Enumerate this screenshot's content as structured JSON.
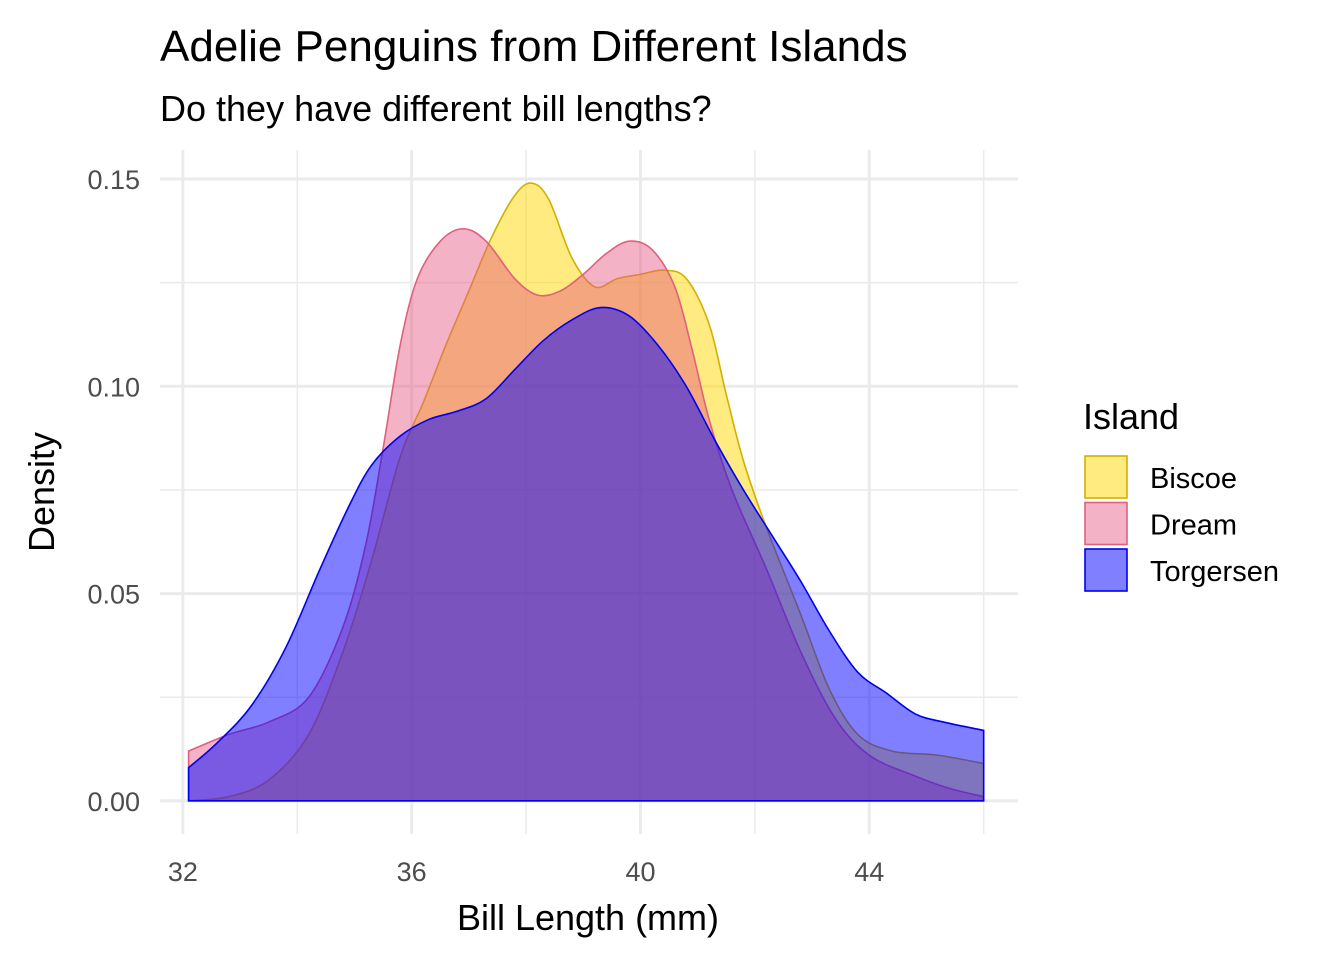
{
  "chart_data": {
    "type": "area",
    "title": "Adelie Penguins from Different Islands",
    "subtitle": "Do they have different bill lengths?",
    "xlabel": "Bill Length (mm)",
    "ylabel": "Density",
    "xlim": [
      31.6,
      46.6
    ],
    "ylim": [
      -0.008,
      0.157
    ],
    "x_ticks": [
      32,
      36,
      40,
      44
    ],
    "x_tick_labels": [
      "32",
      "36",
      "40",
      "44"
    ],
    "y_ticks": [
      0.0,
      0.05,
      0.1,
      0.15
    ],
    "y_tick_labels": [
      "0.00",
      "0.05",
      "0.10",
      "0.15"
    ],
    "grid": true,
    "legend": {
      "title": "Island",
      "position": "right"
    },
    "series": [
      {
        "name": "Biscoe",
        "fill": "#FFD700",
        "stroke": "#D4AF00",
        "opacity": 0.5,
        "points": [
          [
            32.1,
            0.0
          ],
          [
            32.8,
            0.001
          ],
          [
            33.5,
            0.005
          ],
          [
            34.2,
            0.016
          ],
          [
            34.8,
            0.036
          ],
          [
            35.3,
            0.058
          ],
          [
            35.8,
            0.083
          ],
          [
            36.2,
            0.096
          ],
          [
            36.6,
            0.11
          ],
          [
            37.0,
            0.123
          ],
          [
            37.4,
            0.136
          ],
          [
            37.8,
            0.146
          ],
          [
            38.1,
            0.149
          ],
          [
            38.4,
            0.145
          ],
          [
            38.8,
            0.131
          ],
          [
            39.2,
            0.124
          ],
          [
            39.6,
            0.126
          ],
          [
            40.0,
            0.127
          ],
          [
            40.4,
            0.128
          ],
          [
            40.8,
            0.126
          ],
          [
            41.2,
            0.115
          ],
          [
            41.5,
            0.098
          ],
          [
            41.8,
            0.082
          ],
          [
            42.2,
            0.066
          ],
          [
            42.8,
            0.045
          ],
          [
            43.3,
            0.027
          ],
          [
            43.8,
            0.016
          ],
          [
            44.4,
            0.012
          ],
          [
            45.2,
            0.011
          ],
          [
            46.0,
            0.009
          ]
        ]
      },
      {
        "name": "Dream",
        "fill": "#E75480",
        "stroke": "#E0607E",
        "opacity": 0.45,
        "points": [
          [
            32.1,
            0.012
          ],
          [
            32.8,
            0.016
          ],
          [
            33.5,
            0.019
          ],
          [
            34.2,
            0.025
          ],
          [
            34.8,
            0.042
          ],
          [
            35.2,
            0.062
          ],
          [
            35.5,
            0.085
          ],
          [
            35.8,
            0.11
          ],
          [
            36.1,
            0.126
          ],
          [
            36.5,
            0.135
          ],
          [
            36.9,
            0.138
          ],
          [
            37.3,
            0.135
          ],
          [
            37.8,
            0.126
          ],
          [
            38.2,
            0.122
          ],
          [
            38.6,
            0.123
          ],
          [
            39.0,
            0.127
          ],
          [
            39.4,
            0.132
          ],
          [
            39.8,
            0.135
          ],
          [
            40.2,
            0.133
          ],
          [
            40.6,
            0.124
          ],
          [
            40.9,
            0.109
          ],
          [
            41.2,
            0.092
          ],
          [
            41.6,
            0.075
          ],
          [
            42.2,
            0.056
          ],
          [
            42.8,
            0.036
          ],
          [
            43.4,
            0.02
          ],
          [
            44.0,
            0.011
          ],
          [
            44.8,
            0.006
          ],
          [
            45.4,
            0.003
          ],
          [
            46.0,
            0.001
          ]
        ]
      },
      {
        "name": "Torgersen",
        "fill": "#0000FF",
        "stroke": "#0000EE",
        "opacity": 0.5,
        "points": [
          [
            32.1,
            0.008
          ],
          [
            32.6,
            0.014
          ],
          [
            33.2,
            0.023
          ],
          [
            33.8,
            0.037
          ],
          [
            34.4,
            0.056
          ],
          [
            34.9,
            0.071
          ],
          [
            35.3,
            0.081
          ],
          [
            35.8,
            0.088
          ],
          [
            36.3,
            0.092
          ],
          [
            36.8,
            0.094
          ],
          [
            37.3,
            0.097
          ],
          [
            37.8,
            0.104
          ],
          [
            38.3,
            0.111
          ],
          [
            38.8,
            0.116
          ],
          [
            39.3,
            0.119
          ],
          [
            39.8,
            0.117
          ],
          [
            40.3,
            0.11
          ],
          [
            40.8,
            0.1
          ],
          [
            41.3,
            0.087
          ],
          [
            41.8,
            0.075
          ],
          [
            42.3,
            0.064
          ],
          [
            42.8,
            0.053
          ],
          [
            43.3,
            0.041
          ],
          [
            43.8,
            0.031
          ],
          [
            44.3,
            0.026
          ],
          [
            44.8,
            0.021
          ],
          [
            45.3,
            0.019
          ],
          [
            46.0,
            0.017
          ]
        ]
      }
    ]
  }
}
